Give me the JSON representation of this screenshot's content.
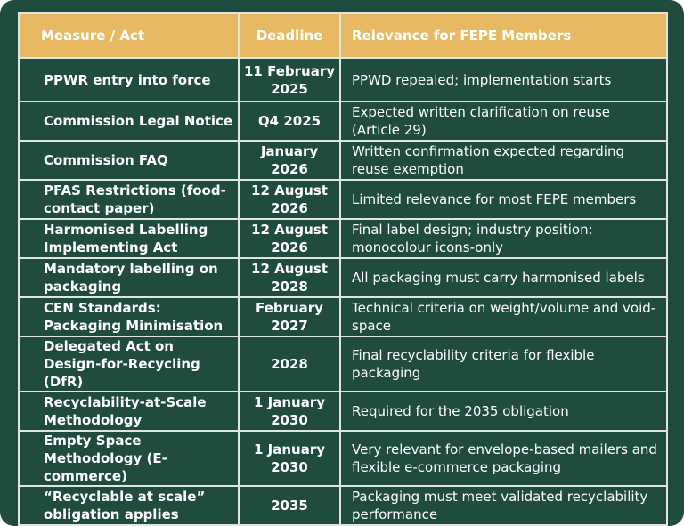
{
  "headers": {
    "measure": "Measure / Act",
    "deadline": "Deadline",
    "relevance": "Relevance for FEPE Members"
  },
  "rows": [
    {
      "measure": "PPWR entry into force",
      "deadline": "11 February 2025",
      "relevance": "PPWD repealed; implementation starts"
    },
    {
      "measure": "Commission Legal Notice",
      "deadline": "Q4 2025",
      "relevance": "Expected written clarification on reuse (Article 29)"
    },
    {
      "measure": "Commission FAQ",
      "deadline": "January 2026",
      "relevance": "Written confirmation expected regarding reuse exemption"
    },
    {
      "measure": "PFAS Restrictions (food-contact paper)",
      "deadline": "12 August 2026",
      "relevance": "Limited relevance for most FEPE members"
    },
    {
      "measure": "Harmonised Labelling Implementing Act",
      "deadline": "12 August 2026",
      "relevance": "Final label design; industry position: monocolour icons-only"
    },
    {
      "measure": "Mandatory labelling on packaging",
      "deadline": "12 August 2028",
      "relevance": "All packaging must carry harmonised labels"
    },
    {
      "measure": "CEN Standards: Packaging Minimisation",
      "deadline": "February 2027",
      "relevance": "Technical criteria on weight/volume and void-space"
    },
    {
      "measure": "Delegated Act on Design-for-Recycling (DfR)",
      "deadline": "2028",
      "relevance": "Final recyclability criteria for flexible packaging"
    },
    {
      "measure": "Recyclability-at-Scale Methodology",
      "deadline": "1 January 2030",
      "relevance": "Required for the 2035 obligation"
    },
    {
      "measure": "Empty Space Methodology (E-commerce)",
      "deadline": "1 January 2030",
      "relevance": "Very relevant for envelope-based mailers and flexible e-commerce packaging"
    },
    {
      "measure": "“Recyclable at scale” obligation applies",
      "deadline": "2035",
      "relevance": "Packaging must meet validated recyclability performance"
    }
  ],
  "colors": {
    "background": "#1f4c3f",
    "header": "#e7b963",
    "grid": "#dfe5e1",
    "text": "#ffffff"
  }
}
